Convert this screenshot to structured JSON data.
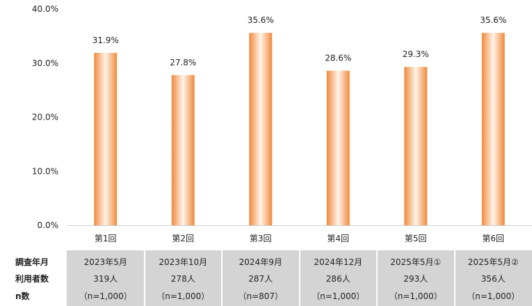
{
  "chart_data": {
    "type": "bar",
    "categories": [
      "第1回",
      "第2回",
      "第3回",
      "第4回",
      "第5回",
      "第6回"
    ],
    "values": [
      31.9,
      27.8,
      35.6,
      28.6,
      29.3,
      35.6
    ],
    "data_labels": [
      "31.9%",
      "27.8%",
      "35.6%",
      "28.6%",
      "29.3%",
      "35.6%"
    ],
    "yticks": [
      "0.0%",
      "10.0%",
      "20.0%",
      "30.0%",
      "40.0%"
    ],
    "ylim": [
      0,
      40
    ],
    "grid": false,
    "bar_color": "#F08A3C",
    "bar_highlight": "#FFF4EA"
  },
  "table": {
    "row_labels": [
      "調査年月",
      "利用者数",
      "n数"
    ],
    "columns": [
      {
        "date": "2023年5月",
        "users": "319人",
        "n": "（n=1,000）"
      },
      {
        "date": "2023年10月",
        "users": "278人",
        "n": "（n=1,000）"
      },
      {
        "date": "2024年9月",
        "users": "287人",
        "n": "（n=807）"
      },
      {
        "date": "2024年12月",
        "users": "286人",
        "n": "（n=1,000）"
      },
      {
        "date": "2025年5月①",
        "users": "293人",
        "n": "（n=1,000）"
      },
      {
        "date": "2025年5月②",
        "users": "356人",
        "n": "（n=1,000）"
      }
    ],
    "bg_color": "#D4D4D4"
  }
}
